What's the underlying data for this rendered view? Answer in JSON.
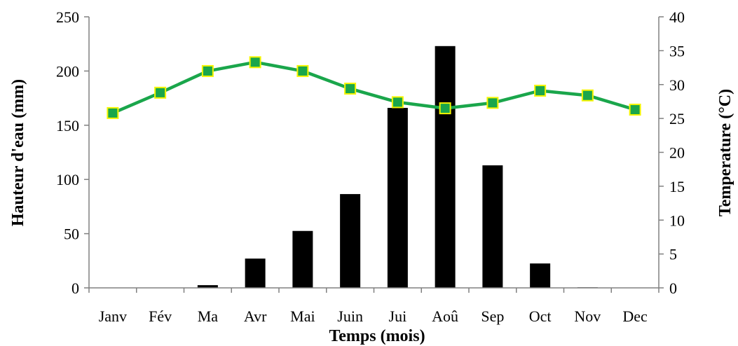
{
  "chart_data": {
    "type": "bar+line",
    "xlabel": "Temps (mois)",
    "ylabel_left": "Hauteur d'eau (mm)",
    "ylabel_right": "Temperature (°C)",
    "categories": [
      "Janv",
      "Fév",
      "Ma",
      "Avr",
      "Mai",
      "Juin",
      "Jui",
      "Aoû",
      "Sep",
      "Oct",
      "Nov",
      "Dec"
    ],
    "ylim_left": [
      0,
      250
    ],
    "yticks_left": [
      "0",
      "50",
      "100",
      "150",
      "200",
      "250"
    ],
    "ylim_right": [
      0,
      40
    ],
    "yticks_right": [
      "0",
      "5",
      "10",
      "15",
      "20",
      "25",
      "30",
      "35",
      "40"
    ],
    "grid": false,
    "legend": "none",
    "series": [
      {
        "type": "bar",
        "axis": "left",
        "color": "#000000",
        "values": [
          0,
          0,
          2.5,
          27,
          52.5,
          86.5,
          166,
          223,
          113,
          22.5,
          0.5,
          0
        ]
      },
      {
        "type": "line",
        "axis": "right",
        "color": "#1aa64b",
        "marker_fill": "#1aa64b",
        "marker_edge": "#f5f500",
        "values": [
          25.8,
          28.8,
          32.0,
          33.3,
          32.0,
          29.4,
          27.4,
          26.5,
          27.3,
          29.1,
          28.4,
          26.3
        ]
      }
    ]
  }
}
